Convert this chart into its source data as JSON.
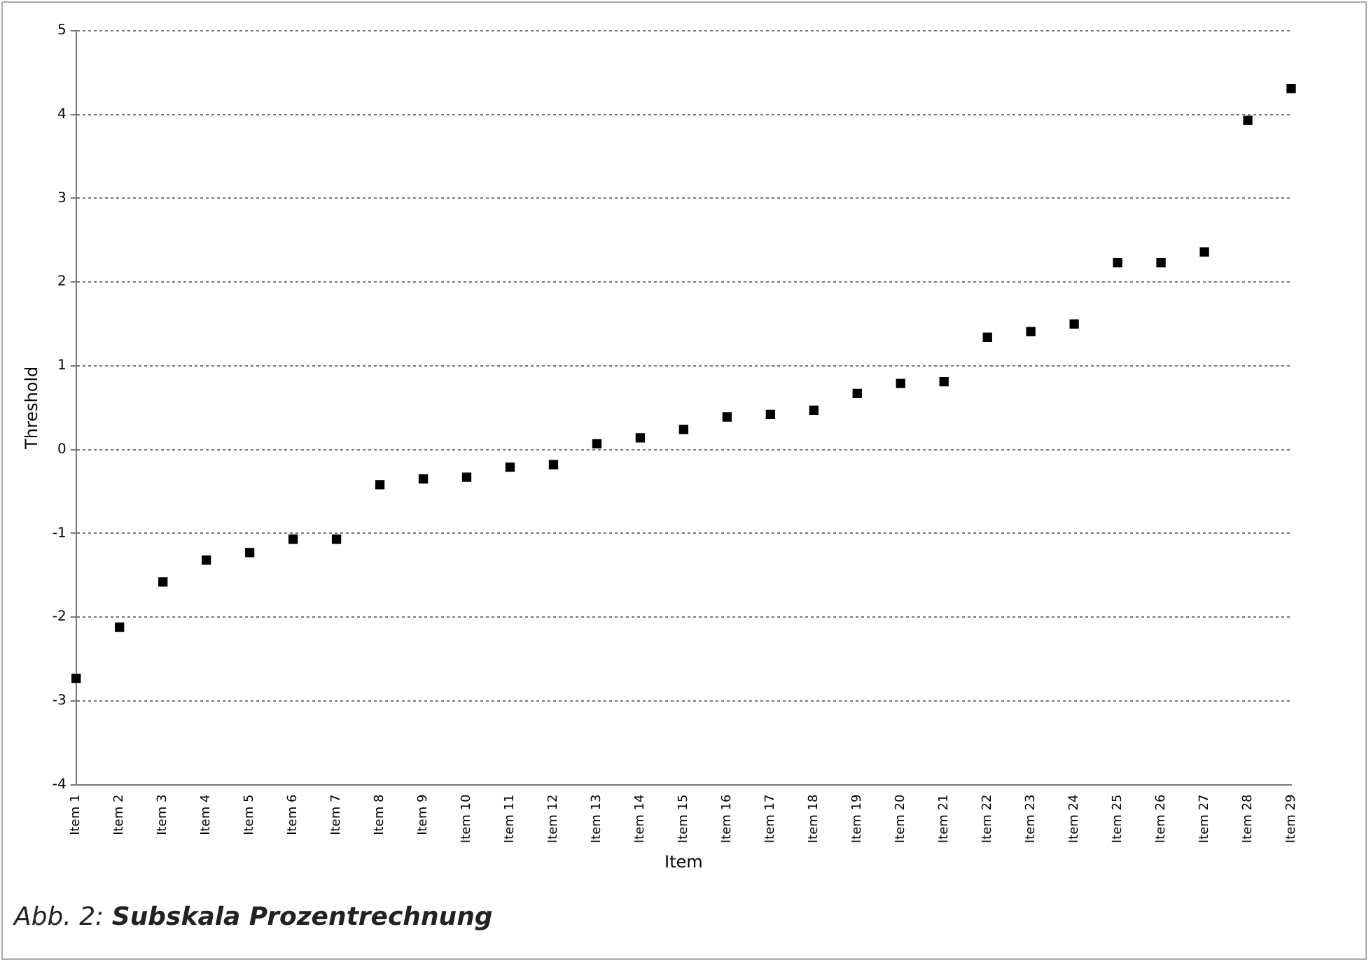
{
  "chart_data": {
    "type": "scatter",
    "ylabel": "Threshold",
    "xlabel": "Item",
    "categories": [
      "Item 1",
      "Item 2",
      "Item 3",
      "Item 4",
      "Item 5",
      "Item 6",
      "Item 7",
      "Item 8",
      "Item 9",
      "Item 10",
      "Item 11",
      "Item 12",
      "Item 13",
      "Item 14",
      "Item 15",
      "Item 16",
      "Item 17",
      "Item 18",
      "Item 19",
      "Item 20",
      "Item 21",
      "Item 22",
      "Item 23",
      "Item 24",
      "Item 25",
      "Item 26",
      "Item 27",
      "Item 28",
      "Item 29"
    ],
    "series": [
      {
        "color": "#000000",
        "values": [
          -2.73,
          -2.12,
          -1.58,
          -1.32,
          -1.23,
          -1.07,
          -1.07,
          -0.42,
          -0.35,
          -0.33,
          -0.21,
          -0.18,
          0.07,
          0.14,
          0.24,
          0.39,
          0.42,
          0.47,
          0.67,
          0.79,
          0.81,
          1.34,
          1.41,
          1.5,
          2.23,
          2.23,
          2.36,
          3.93,
          4.31
        ]
      }
    ],
    "ylim": [
      -4,
      5
    ],
    "yticks": [
      -4,
      -3,
      -2,
      -1,
      0,
      1,
      2,
      3,
      4,
      5
    ],
    "grid": "y",
    "marker": "square",
    "legend": false,
    "annotations": [
      "Abb. 2: Subskala Prozentrechnung"
    ]
  }
}
